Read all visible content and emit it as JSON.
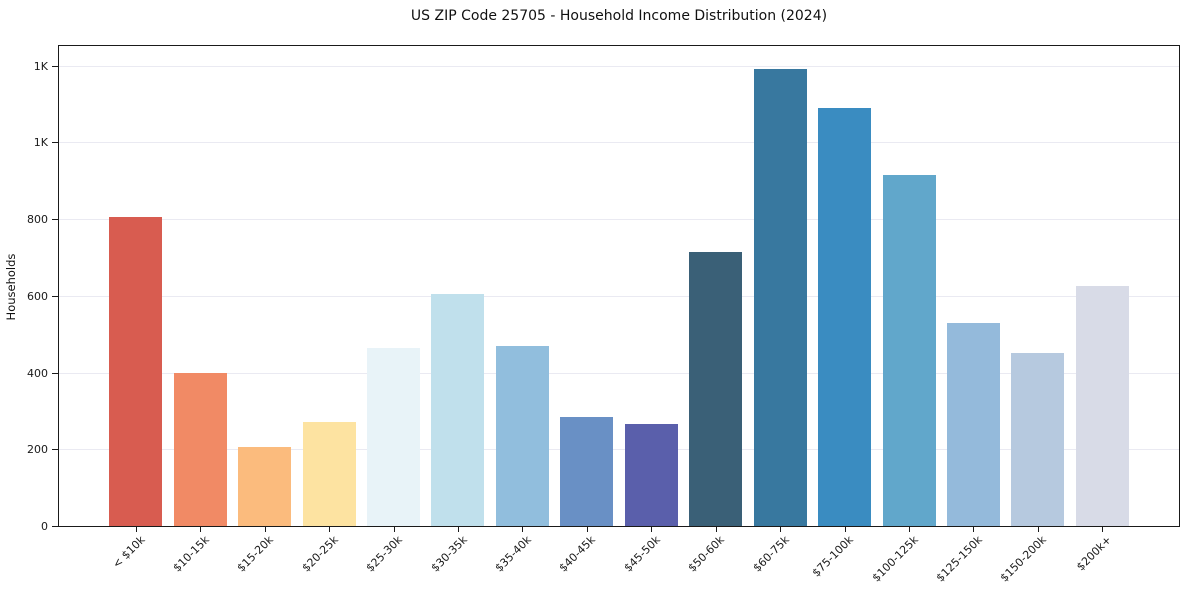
{
  "figure": {
    "title": "US ZIP Code 25705 - Household Income Distribution (2024)",
    "ylabel": "Households"
  },
  "chart_data": {
    "type": "bar",
    "title": "US ZIP Code 25705 - Household Income Distribution (2024)",
    "xlabel": "",
    "ylabel": "Households",
    "categories": [
      "< $10k",
      "$10-15k",
      "$15-20k",
      "$20-25k",
      "$25-30k",
      "$30-35k",
      "$35-40k",
      "$40-45k",
      "$45-50k",
      "$50-60k",
      "$60-75k",
      "$75-100k",
      "$100-125k",
      "$125-150k",
      "$150-200k",
      "$200k+"
    ],
    "values": [
      805,
      400,
      205,
      270,
      465,
      605,
      470,
      283,
      267,
      715,
      1190,
      1090,
      915,
      530,
      450,
      625
    ],
    "bar_colors": [
      "#d85c50",
      "#f18a65",
      "#fbbb7d",
      "#fde3a1",
      "#e8f3f8",
      "#c0e0ec",
      "#91bedd",
      "#6990c5",
      "#5a5fab",
      "#3a6077",
      "#38789f",
      "#3a8cc1",
      "#61a7cb",
      "#94badb",
      "#b6c9df",
      "#d8dbe7"
    ],
    "ylim": [
      0,
      1251
    ],
    "yticks": [
      {
        "value": 0,
        "label": "0"
      },
      {
        "value": 200,
        "label": "200"
      },
      {
        "value": 400,
        "label": "400"
      },
      {
        "value": 600,
        "label": "600"
      },
      {
        "value": 800,
        "label": "800"
      },
      {
        "value": 1000,
        "label": "1K"
      },
      {
        "value": 1200,
        "label": "1K"
      }
    ],
    "grid": "horizontal",
    "legend": "none",
    "background_color": "#ffffff",
    "spine_color": "#1a1a1a",
    "grid_color": "#eaeaf2",
    "tick_label_rotation_deg": 45
  }
}
